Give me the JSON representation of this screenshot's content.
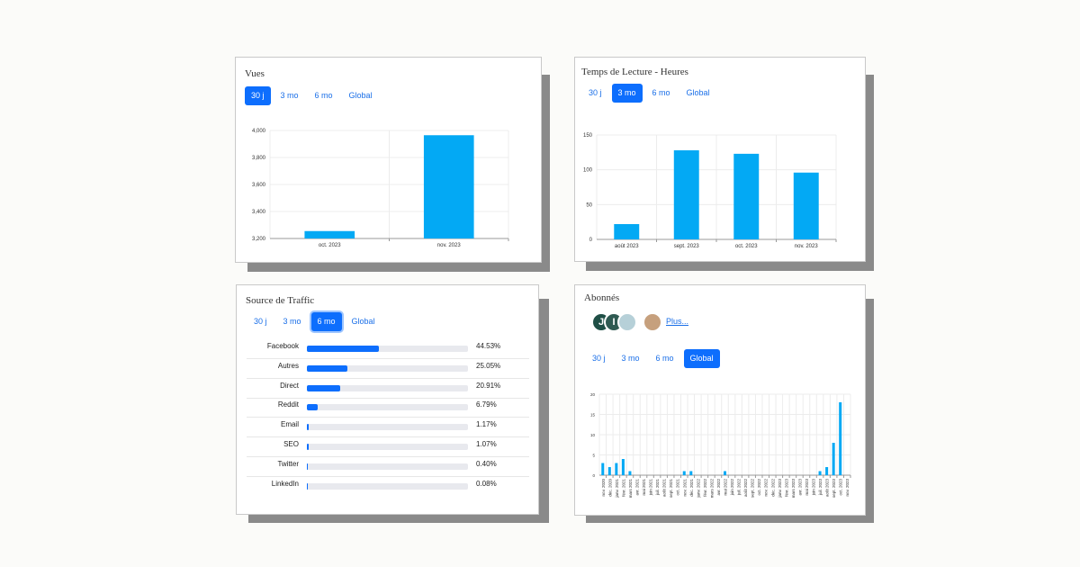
{
  "cards": {
    "views": {
      "title": "Vues",
      "tabs": [
        "30 j",
        "3 mo",
        "6 mo",
        "Global"
      ],
      "active_tab": 0
    },
    "reading": {
      "title": "Temps de Lecture - Heures",
      "tabs": [
        "30 j",
        "3 mo",
        "6 mo",
        "Global"
      ],
      "active_tab": 1
    },
    "traffic": {
      "title": "Source de Traffic",
      "tabs": [
        "30 j",
        "3 mo",
        "6 mo",
        "Global"
      ],
      "active_tab": 2,
      "sources": [
        {
          "label": "Facebook",
          "value": "44.53%",
          "pct": 44.53
        },
        {
          "label": "Autres",
          "value": "25.05%",
          "pct": 25.05
        },
        {
          "label": "Direct",
          "value": "20.91%",
          "pct": 20.91
        },
        {
          "label": "Reddit",
          "value": "6.79%",
          "pct": 6.79
        },
        {
          "label": "Email",
          "value": "1.17%",
          "pct": 1.17
        },
        {
          "label": "SEO",
          "value": "1.07%",
          "pct": 1.07
        },
        {
          "label": "Twitter",
          "value": "0.40%",
          "pct": 0.4
        },
        {
          "label": "LinkedIn",
          "value": "0.08%",
          "pct": 0.08
        }
      ]
    },
    "subscribers": {
      "title": "Abonnés",
      "avatars": [
        {
          "initial": "J",
          "color": "#1f4f46"
        },
        {
          "initial": "I",
          "color": "#2f5a52"
        },
        {
          "initial": "",
          "color": "#b6d0d8"
        },
        {
          "initial": "",
          "color": "#c6a07d"
        }
      ],
      "more_label": "Plus...",
      "tabs": [
        "30 j",
        "3 mo",
        "6 mo",
        "Global"
      ],
      "active_tab": 3
    }
  },
  "colors": {
    "bar": "#03a9f4",
    "accent": "#0d6efd"
  },
  "chart_data": [
    {
      "id": "views",
      "type": "bar",
      "categories": [
        "oct. 2023",
        "nov. 2023"
      ],
      "values": [
        3255,
        3965
      ],
      "ylim": [
        3200,
        4000
      ],
      "yticks": [
        3200,
        3400,
        3600,
        3800,
        4000
      ],
      "ytick_labels": [
        "3,200",
        "3,400",
        "3,600",
        "3,800",
        "4,000"
      ],
      "grid": true
    },
    {
      "id": "reading",
      "type": "bar",
      "categories": [
        "août 2023",
        "sept. 2023",
        "oct. 2023",
        "nov. 2023"
      ],
      "values": [
        22,
        128,
        123,
        96
      ],
      "ylim": [
        0,
        150
      ],
      "yticks": [
        0,
        50,
        100,
        150
      ],
      "ytick_labels": [
        "0",
        "50",
        "100",
        "150"
      ],
      "grid": true
    },
    {
      "id": "subscribers",
      "type": "bar",
      "categories": [
        "nov. 2020",
        "déc. 2020",
        "janv. 2021",
        "févr. 2021",
        "mars 2021",
        "avr. 2021",
        "mai 2021",
        "juin 2021",
        "juil. 2021",
        "août 2021",
        "sept. 2021",
        "oct. 2021",
        "nov. 2021",
        "déc. 2021",
        "janv. 2022",
        "févr. 2022",
        "mars 2022",
        "avr. 2022",
        "mai 2022",
        "juin 2022",
        "juil. 2022",
        "août 2022",
        "sept. 2022",
        "oct. 2022",
        "nov. 2022",
        "déc. 2022",
        "janv. 2023",
        "févr. 2023",
        "mars 2023",
        "avr. 2023",
        "mai 2023",
        "juin 2023",
        "juil. 2023",
        "août 2023",
        "sept. 2023",
        "oct. 2023",
        "nov. 2023"
      ],
      "values": [
        3,
        2,
        3,
        4,
        1,
        0,
        0,
        0,
        0,
        0,
        0,
        0,
        1,
        1,
        0,
        0,
        0,
        0,
        1,
        0,
        0,
        0,
        0,
        0,
        0,
        0,
        0,
        0,
        0,
        0,
        0,
        0,
        1,
        2,
        8,
        18,
        0
      ],
      "ylim": [
        0,
        20
      ],
      "yticks": [
        0,
        5,
        10,
        15,
        20
      ],
      "ytick_labels": [
        "0",
        "5",
        "10",
        "15",
        "20"
      ],
      "grid": true
    }
  ]
}
